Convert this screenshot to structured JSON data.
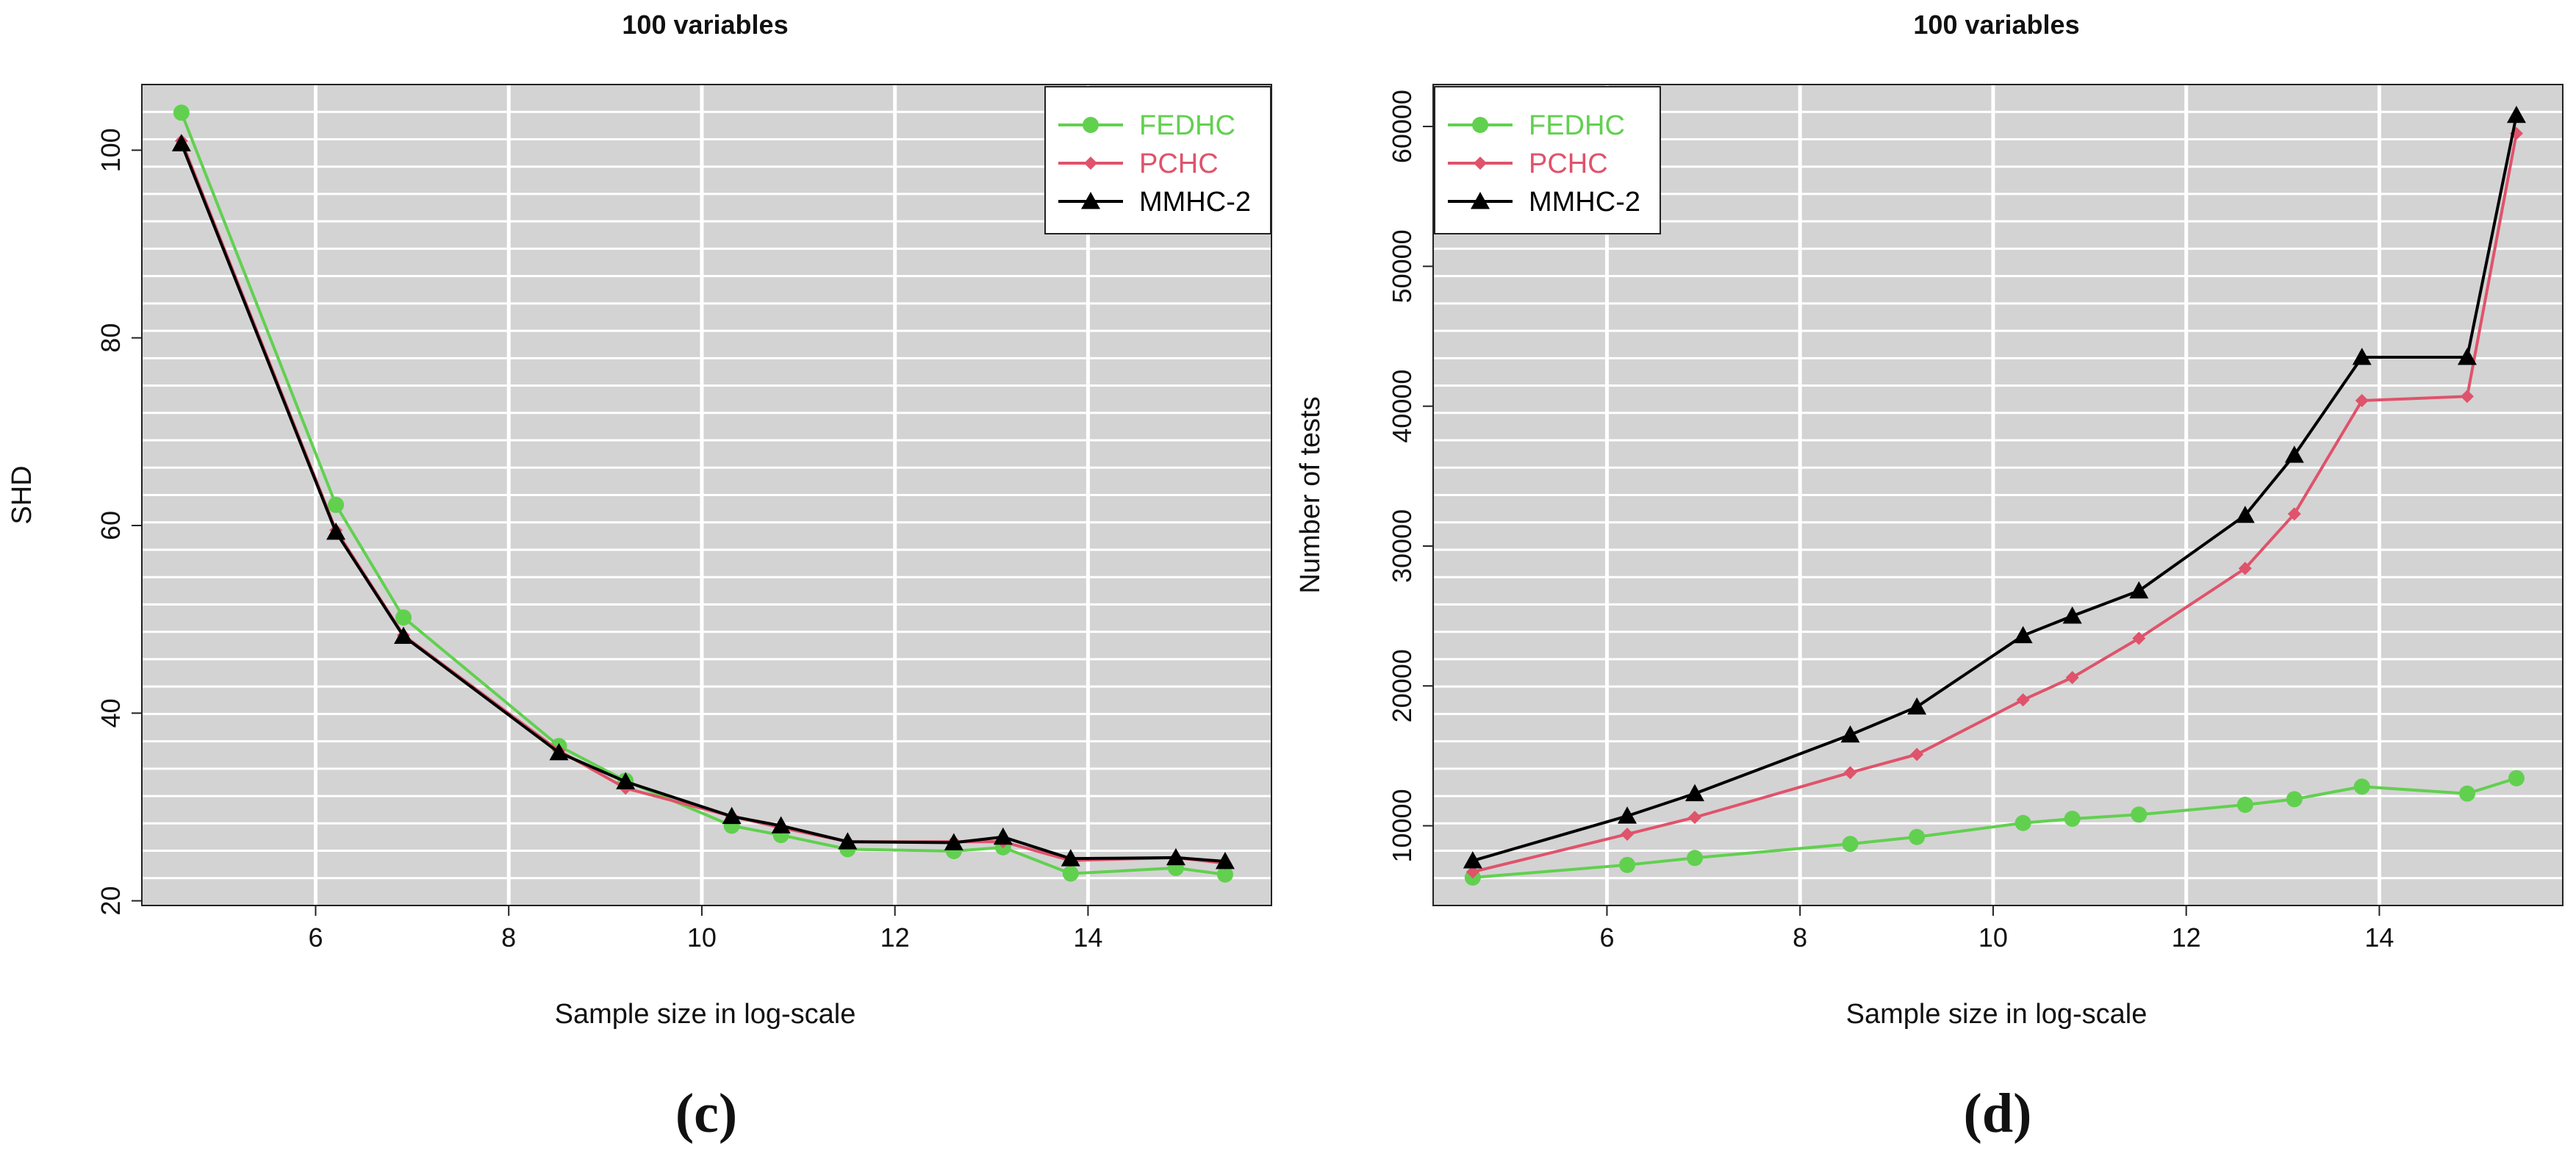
{
  "chart_data": [
    {
      "type": "line",
      "title": "100 variables",
      "xlabel": "Sample size in log-scale",
      "ylabel": "SHD",
      "xlim": [
        4.2,
        15.9
      ],
      "ylim": [
        19.5,
        107
      ],
      "xticks": [
        6,
        8,
        10,
        12,
        14
      ],
      "yticks": [
        20,
        40,
        60,
        80,
        100
      ],
      "x": [
        4.61,
        6.21,
        6.91,
        8.52,
        9.21,
        10.31,
        10.82,
        11.51,
        12.61,
        13.12,
        13.82,
        14.91,
        15.42
      ],
      "series": [
        {
          "name": "FEDHC",
          "color": "#61D04F",
          "marker": "circle",
          "values": [
            104,
            62.2,
            50.2,
            36.5,
            32.8,
            28,
            27,
            25.5,
            25.3,
            25.7,
            22.9,
            23.5,
            22.8
          ]
        },
        {
          "name": "PCHC",
          "color": "#DF536B",
          "marker": "diamond",
          "values": [
            101,
            59.5,
            48.3,
            36,
            32,
            29,
            27.8,
            26.3,
            26.3,
            26.3,
            24.3,
            24.6,
            24
          ]
        },
        {
          "name": "MMHC-2",
          "color": "#000000",
          "marker": "triangle",
          "values": [
            100.7,
            59.3,
            48.2,
            35.8,
            32.7,
            29,
            28,
            26.3,
            26.2,
            26.8,
            24.5,
            24.6,
            24.2
          ]
        }
      ],
      "legend_position": "top-right",
      "caption": "(c)"
    },
    {
      "type": "line",
      "title": "100 variables",
      "xlabel": "Sample size in log-scale",
      "ylabel": "Number of tests",
      "xlim": [
        4.2,
        15.9
      ],
      "ylim": [
        4300,
        63000
      ],
      "xticks": [
        6,
        8,
        10,
        12,
        14
      ],
      "yticks": [
        10000,
        20000,
        30000,
        40000,
        50000,
        60000
      ],
      "x": [
        4.61,
        6.21,
        6.91,
        8.52,
        9.21,
        10.31,
        10.82,
        11.51,
        12.61,
        13.12,
        13.82,
        14.91,
        15.42
      ],
      "series": [
        {
          "name": "FEDHC",
          "color": "#61D04F",
          "marker": "circle",
          "values": [
            6300,
            7200,
            7700,
            8700,
            9200,
            10200,
            10500,
            10800,
            11500,
            11900,
            12800,
            12300,
            13400
          ]
        },
        {
          "name": "PCHC",
          "color": "#DF536B",
          "marker": "diamond",
          "values": [
            6700,
            9400,
            10600,
            13800,
            15100,
            19000,
            20600,
            23400,
            28400,
            32300,
            40400,
            40700,
            59500
          ]
        },
        {
          "name": "MMHC-2",
          "color": "#000000",
          "marker": "triangle",
          "values": [
            7500,
            10700,
            12300,
            16500,
            18500,
            23600,
            25000,
            26800,
            32200,
            36500,
            43500,
            43500,
            60800
          ]
        }
      ],
      "legend_position": "top-left",
      "caption": "(d)"
    }
  ]
}
